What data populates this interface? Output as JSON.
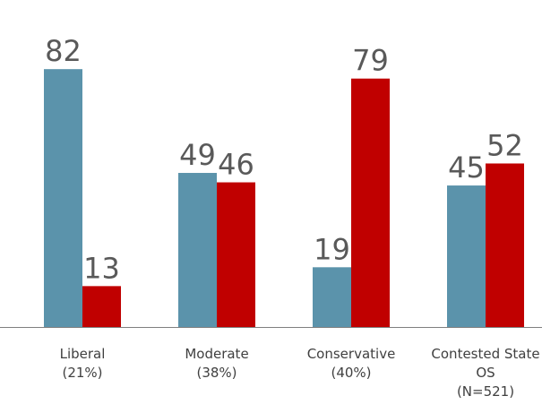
{
  "chart_data": {
    "type": "bar",
    "categories": [
      [
        "Liberal",
        "(21%)"
      ],
      [
        "Moderate",
        "(38%)"
      ],
      [
        "Conservative",
        "(40%)"
      ],
      [
        "Contested State",
        "OS",
        "(N=521)"
      ]
    ],
    "series": [
      {
        "values": [
          82,
          49,
          19,
          45
        ],
        "color": "#5b93ab"
      },
      {
        "values": [
          13,
          46,
          79,
          52
        ],
        "color": "#c00000"
      }
    ],
    "ylim": [
      0,
      100
    ],
    "grid": false,
    "legend": "none",
    "axis_color": "#7f7f7f",
    "title": "",
    "xlabel": "",
    "ylabel": ""
  }
}
